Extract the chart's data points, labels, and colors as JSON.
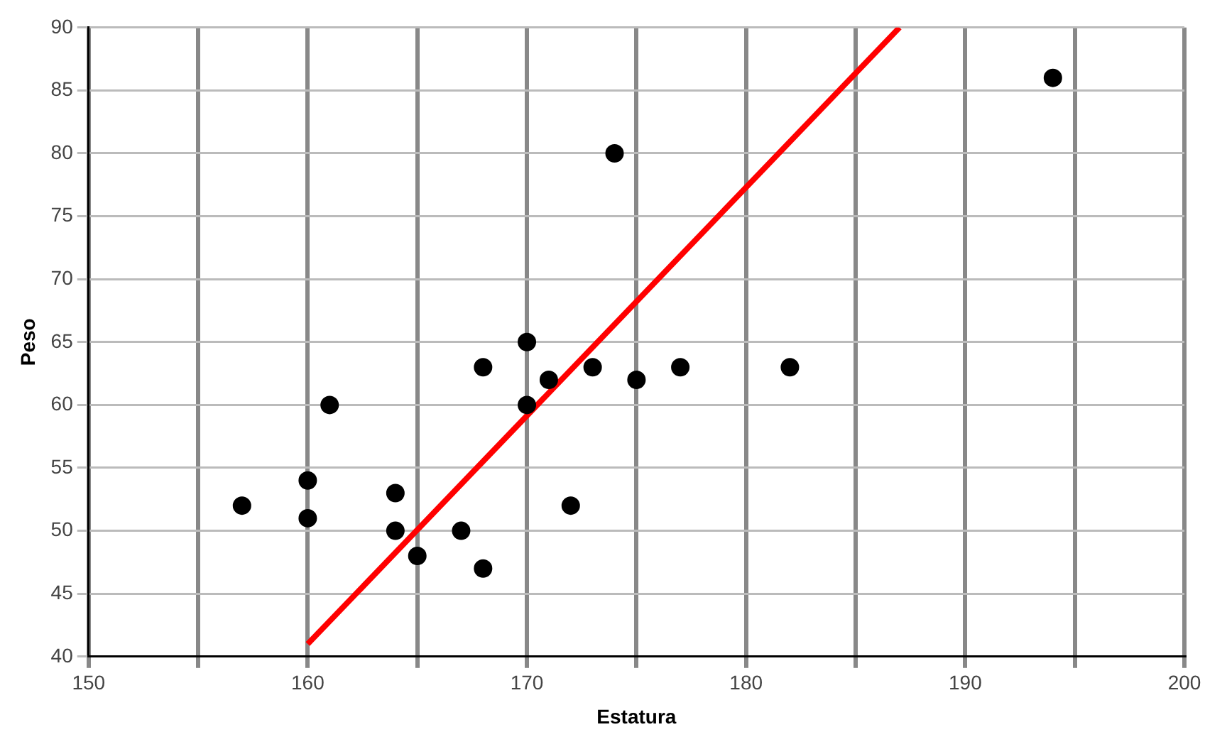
{
  "chart_data": {
    "type": "scatter",
    "xlabel": "Estatura",
    "ylabel": "Peso",
    "xlim": [
      150,
      200
    ],
    "xticks": [
      150,
      {
        "value": 155,
        "label": null
      },
      160,
      {
        "value": 165,
        "label": null
      },
      170,
      {
        "value": 175,
        "label": null
      },
      180,
      {
        "value": 185,
        "label": null
      },
      190,
      {
        "value": 195,
        "label": null
      },
      200
    ],
    "ylim": [
      40,
      90
    ],
    "yticks": [
      40,
      45,
      50,
      55,
      60,
      65,
      70,
      75,
      80,
      85,
      90
    ],
    "grid": true,
    "legend": false,
    "marker": "circle",
    "series": [
      {
        "color": "#000000",
        "x": [
          157,
          160,
          160,
          161,
          164,
          164,
          165,
          167,
          168,
          168,
          170,
          170,
          171,
          172,
          173,
          174,
          175,
          177,
          182,
          194
        ],
        "values": [
          52,
          54,
          51,
          60,
          53,
          50,
          48,
          50,
          63,
          47,
          65,
          60,
          62,
          52,
          63,
          80,
          62,
          63,
          63,
          86
        ]
      },
      {
        "type": "line",
        "color": "#ff0000",
        "marker": "none",
        "x": [
          160,
          187
        ],
        "values": [
          41,
          90
        ]
      }
    ]
  }
}
